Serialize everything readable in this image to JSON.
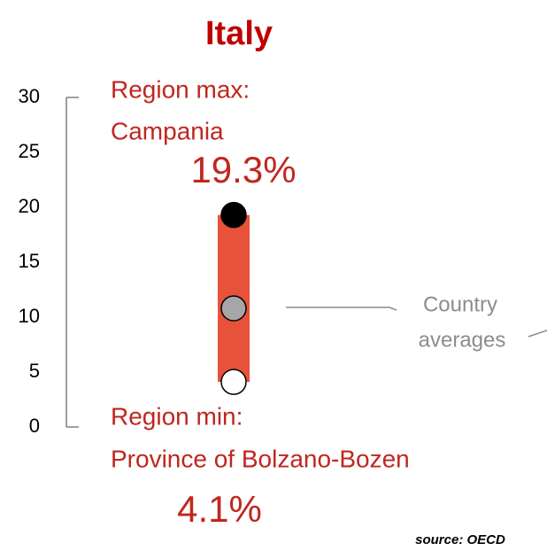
{
  "chart_data": {
    "type": "range",
    "title": "Italy",
    "ylim": [
      0,
      30
    ],
    "yticks": [
      0,
      5,
      10,
      15,
      20,
      25,
      30
    ],
    "bar_color": "#e8523a",
    "max": {
      "label": "Region max:",
      "region": "Campania",
      "value": 19.3,
      "value_label": "19.3%",
      "color": "#000000"
    },
    "average": {
      "value": 10.8,
      "color": "#a6a6a6"
    },
    "min": {
      "label": "Region min:",
      "region": "Province of Bolzano-Bozen",
      "value": 4.1,
      "value_label": "4.1%",
      "color": "#ffffff"
    },
    "annotation": [
      "Country",
      "averages"
    ],
    "source": "source: OECD"
  }
}
